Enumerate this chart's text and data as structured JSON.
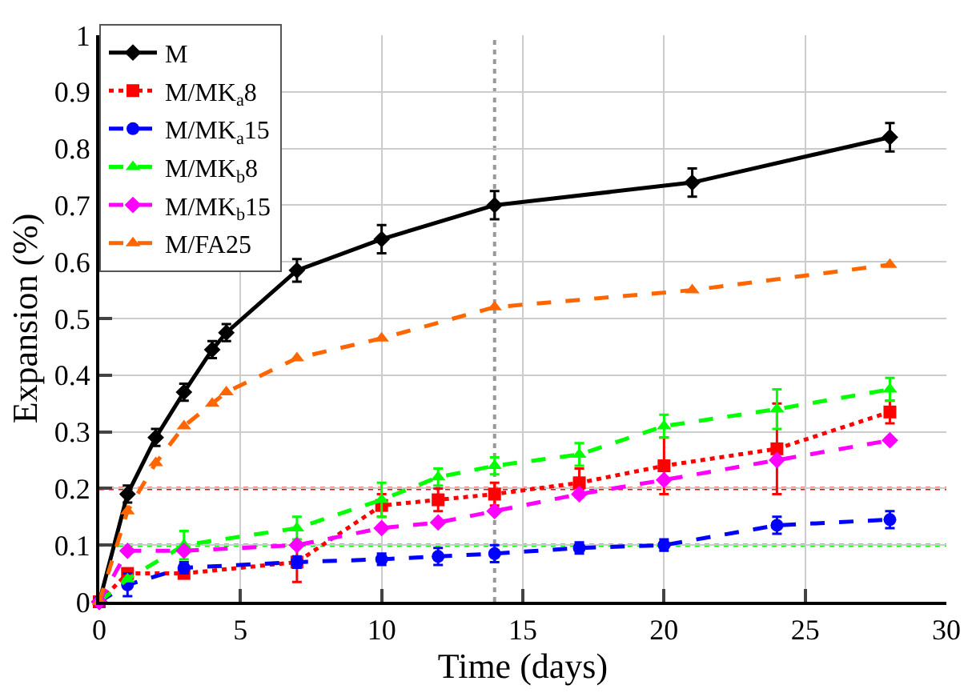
{
  "chart_data": {
    "type": "line",
    "xlabel": "Time (days)",
    "ylabel": "Expansion (%)",
    "xlim": [
      0,
      30
    ],
    "xticks": [
      0,
      5,
      10,
      15,
      20,
      25,
      30
    ],
    "ylim": [
      0,
      1
    ],
    "yticks": [
      0,
      0.1,
      0.2,
      0.3,
      0.4,
      0.5,
      0.6,
      0.7,
      0.8,
      0.9,
      1
    ],
    "grid": true,
    "legend": "top left",
    "series": [
      {
        "name": "M",
        "color": "#000000",
        "marker": "diamond",
        "line_style": "solid",
        "x": [
          0,
          1,
          2,
          3,
          4,
          4.5,
          7,
          10,
          14,
          21,
          28
        ],
        "values": [
          0,
          0.19,
          0.29,
          0.37,
          0.445,
          0.475,
          0.585,
          0.64,
          0.7,
          0.74,
          0.82
        ],
        "errors": [
          null,
          0.015,
          0.015,
          0.015,
          0.015,
          0.015,
          0.02,
          0.025,
          0.025,
          0.025,
          0.025
        ]
      },
      {
        "name": "M/MK$_{a}$8",
        "color": "#ff0000",
        "marker": "square",
        "line_style": "dotted",
        "x": [
          0,
          1,
          3,
          7,
          10,
          12,
          14,
          17,
          20,
          24,
          28
        ],
        "values": [
          0,
          0.05,
          0.05,
          0.07,
          0.17,
          0.18,
          0.19,
          0.21,
          0.24,
          0.27,
          0.335
        ],
        "errors": [
          null,
          null,
          null,
          0.035,
          0.02,
          0.02,
          0.02,
          0.025,
          0.05,
          0.08,
          0.02
        ]
      },
      {
        "name": "M/MK$_{a}$15",
        "color": "#0000ff",
        "marker": "circle",
        "line_style": "dashed",
        "x": [
          0,
          1,
          3,
          7,
          10,
          12,
          14,
          17,
          20,
          24,
          28
        ],
        "values": [
          0,
          0.03,
          0.06,
          0.07,
          0.075,
          0.08,
          0.085,
          0.095,
          0.1,
          0.135,
          0.145
        ],
        "errors": [
          null,
          0.02,
          0.01,
          0.01,
          0.01,
          0.015,
          0.015,
          0.01,
          0.01,
          0.015,
          0.015
        ]
      },
      {
        "name": "M/MK$_{b}$8",
        "color": "#00ff00",
        "marker": "triangle",
        "line_style": "dashed",
        "x": [
          0,
          1,
          3,
          7,
          10,
          12,
          14,
          17,
          20,
          24,
          28
        ],
        "values": [
          0,
          0.04,
          0.1,
          0.13,
          0.18,
          0.22,
          0.24,
          0.26,
          0.31,
          0.34,
          0.375
        ],
        "errors": [
          null,
          null,
          0.025,
          0.02,
          0.03,
          0.015,
          0.015,
          0.02,
          0.02,
          0.035,
          0.02
        ]
      },
      {
        "name": "M/MK$_{b}$15",
        "color": "#ff00ff",
        "marker": "diamond",
        "line_style": "dashed",
        "x": [
          0,
          1,
          3,
          7,
          10,
          12,
          14,
          17,
          20,
          24,
          28
        ],
        "values": [
          0,
          0.09,
          0.09,
          0.1,
          0.13,
          0.14,
          0.16,
          0.19,
          0.215,
          0.25,
          0.285
        ],
        "errors": [
          null,
          null,
          null,
          null,
          null,
          null,
          null,
          null,
          null,
          null,
          null
        ]
      },
      {
        "name": "M/FA25",
        "color": "#ff6600",
        "marker": "triangle",
        "line_style": "dashed",
        "x": [
          0,
          1,
          2,
          3,
          4,
          4.5,
          7,
          10,
          14,
          21,
          28
        ],
        "values": [
          0,
          0.16,
          0.245,
          0.31,
          0.35,
          0.37,
          0.43,
          0.465,
          0.52,
          0.55,
          0.595
        ],
        "errors": [
          null,
          null,
          null,
          null,
          null,
          null,
          null,
          null,
          null,
          null,
          null
        ]
      }
    ],
    "ref_lines": [
      {
        "axis": "y",
        "value": 0.2,
        "color": "#ff0000",
        "line_style": "dotted"
      },
      {
        "axis": "y",
        "value": 0.1,
        "color": "#00ff00",
        "line_style": "dotted"
      },
      {
        "axis": "x",
        "value": 14,
        "color": "#999999",
        "line_style": "dotted"
      }
    ]
  }
}
